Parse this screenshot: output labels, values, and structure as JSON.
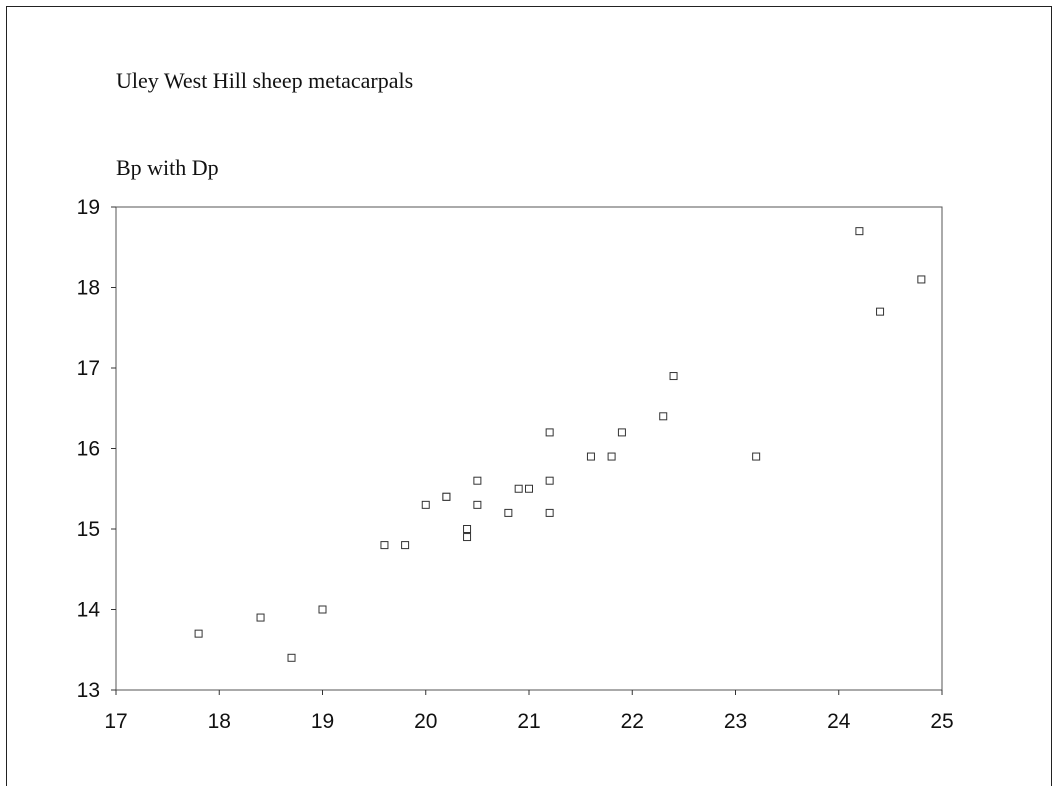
{
  "chart_data": {
    "type": "scatter",
    "title": "Uley West Hill sheep metacarpals",
    "subtitle": "Bp with Dp",
    "xlabel": "",
    "ylabel": "",
    "xlim": [
      17,
      25
    ],
    "ylim": [
      13,
      19
    ],
    "xticks": [
      17,
      18,
      19,
      20,
      21,
      22,
      23,
      24,
      25
    ],
    "yticks": [
      13,
      14,
      15,
      16,
      17,
      18,
      19
    ],
    "grid": false,
    "marker": "open-square",
    "series": [
      {
        "points": [
          [
            17.8,
            13.7
          ],
          [
            18.4,
            13.9
          ],
          [
            18.7,
            13.4
          ],
          [
            19.0,
            14.0
          ],
          [
            19.6,
            14.8
          ],
          [
            19.8,
            14.8
          ],
          [
            20.0,
            15.3
          ],
          [
            20.2,
            15.4
          ],
          [
            20.2,
            15.4
          ],
          [
            20.4,
            15.0
          ],
          [
            20.4,
            14.9
          ],
          [
            20.5,
            15.6
          ],
          [
            20.5,
            15.3
          ],
          [
            20.8,
            15.2
          ],
          [
            20.9,
            15.5
          ],
          [
            21.0,
            15.5
          ],
          [
            21.2,
            16.2
          ],
          [
            21.2,
            15.6
          ],
          [
            21.2,
            15.2
          ],
          [
            21.6,
            15.9
          ],
          [
            21.8,
            15.9
          ],
          [
            21.9,
            16.2
          ],
          [
            22.3,
            16.4
          ],
          [
            22.4,
            16.9
          ],
          [
            23.2,
            15.9
          ],
          [
            24.2,
            18.7
          ],
          [
            24.4,
            17.7
          ],
          [
            24.8,
            18.1
          ]
        ]
      }
    ]
  }
}
